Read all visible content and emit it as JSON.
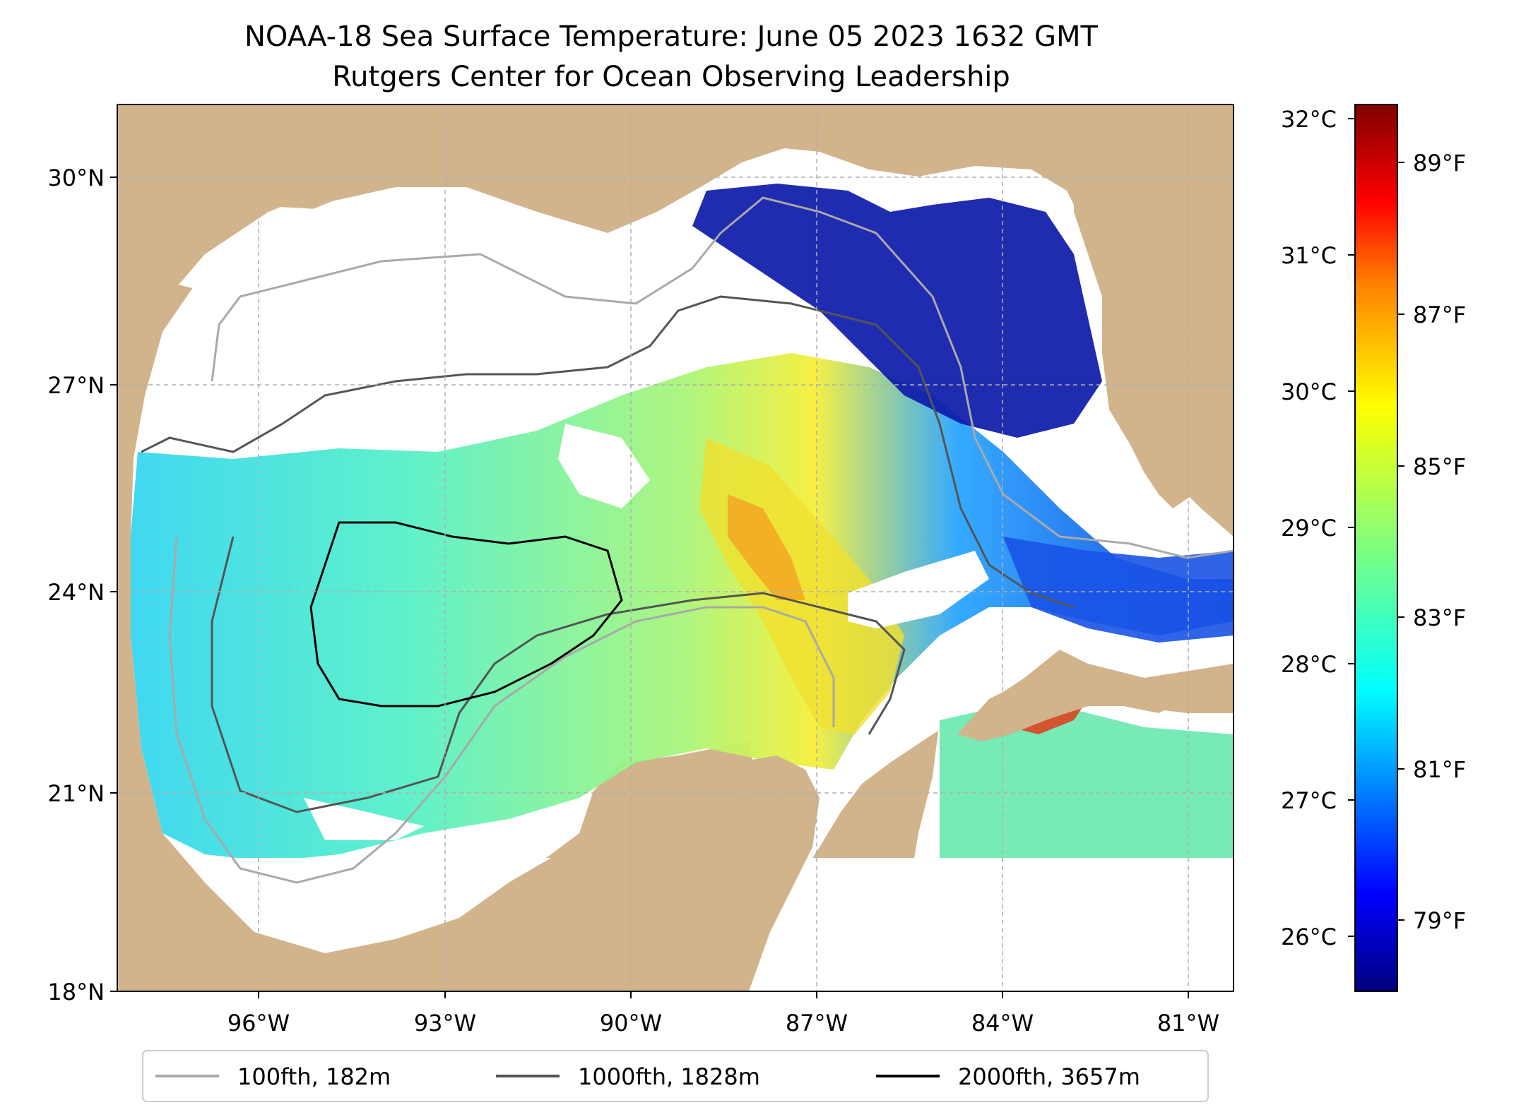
{
  "title": {
    "line1": "NOAA-18 Sea Surface Temperature: June 05 2023 1632 GMT",
    "line2": "Rutgers Center for Ocean Observing Leadership"
  },
  "map": {
    "lat_labels": [
      "30°N",
      "27°N",
      "24°N",
      "21°N",
      "18°N"
    ],
    "lon_labels": [
      "96°W",
      "93°W",
      "90°W",
      "87°W",
      "84°W",
      "81°W"
    ],
    "lat_range": [
      18,
      31
    ],
    "lon_range": [
      -98.3,
      -80.3
    ],
    "land_color": "#d2b48c",
    "cloud_color": "#ffffff",
    "gridlines": true,
    "features": [
      "land",
      "sst",
      "clouds",
      "bathymetry-contours",
      "coastline",
      "borders"
    ]
  },
  "colorbar": {
    "celsius_labels": [
      "32°C",
      "31°C",
      "30°C",
      "29°C",
      "28°C",
      "27°C",
      "26°C"
    ],
    "fahrenheit_labels": [
      "89°F",
      "87°F",
      "85°F",
      "83°F",
      "81°F",
      "79°F"
    ],
    "celsius_range": [
      25.6,
      32.1
    ],
    "colormap": "jet",
    "colormap_stops": [
      "#00007f",
      "#0000ff",
      "#007fff",
      "#00ffff",
      "#7fff7f",
      "#ffff00",
      "#ff7f00",
      "#ff0000",
      "#7f0000"
    ]
  },
  "legend": {
    "position": "bottom-center",
    "items": [
      {
        "label": "100fth, 182m",
        "color": "#a9a9a9"
      },
      {
        "label": "1000fth, 1828m",
        "color": "#555555"
      },
      {
        "label": "2000fth, 3657m",
        "color": "#000000"
      }
    ]
  }
}
